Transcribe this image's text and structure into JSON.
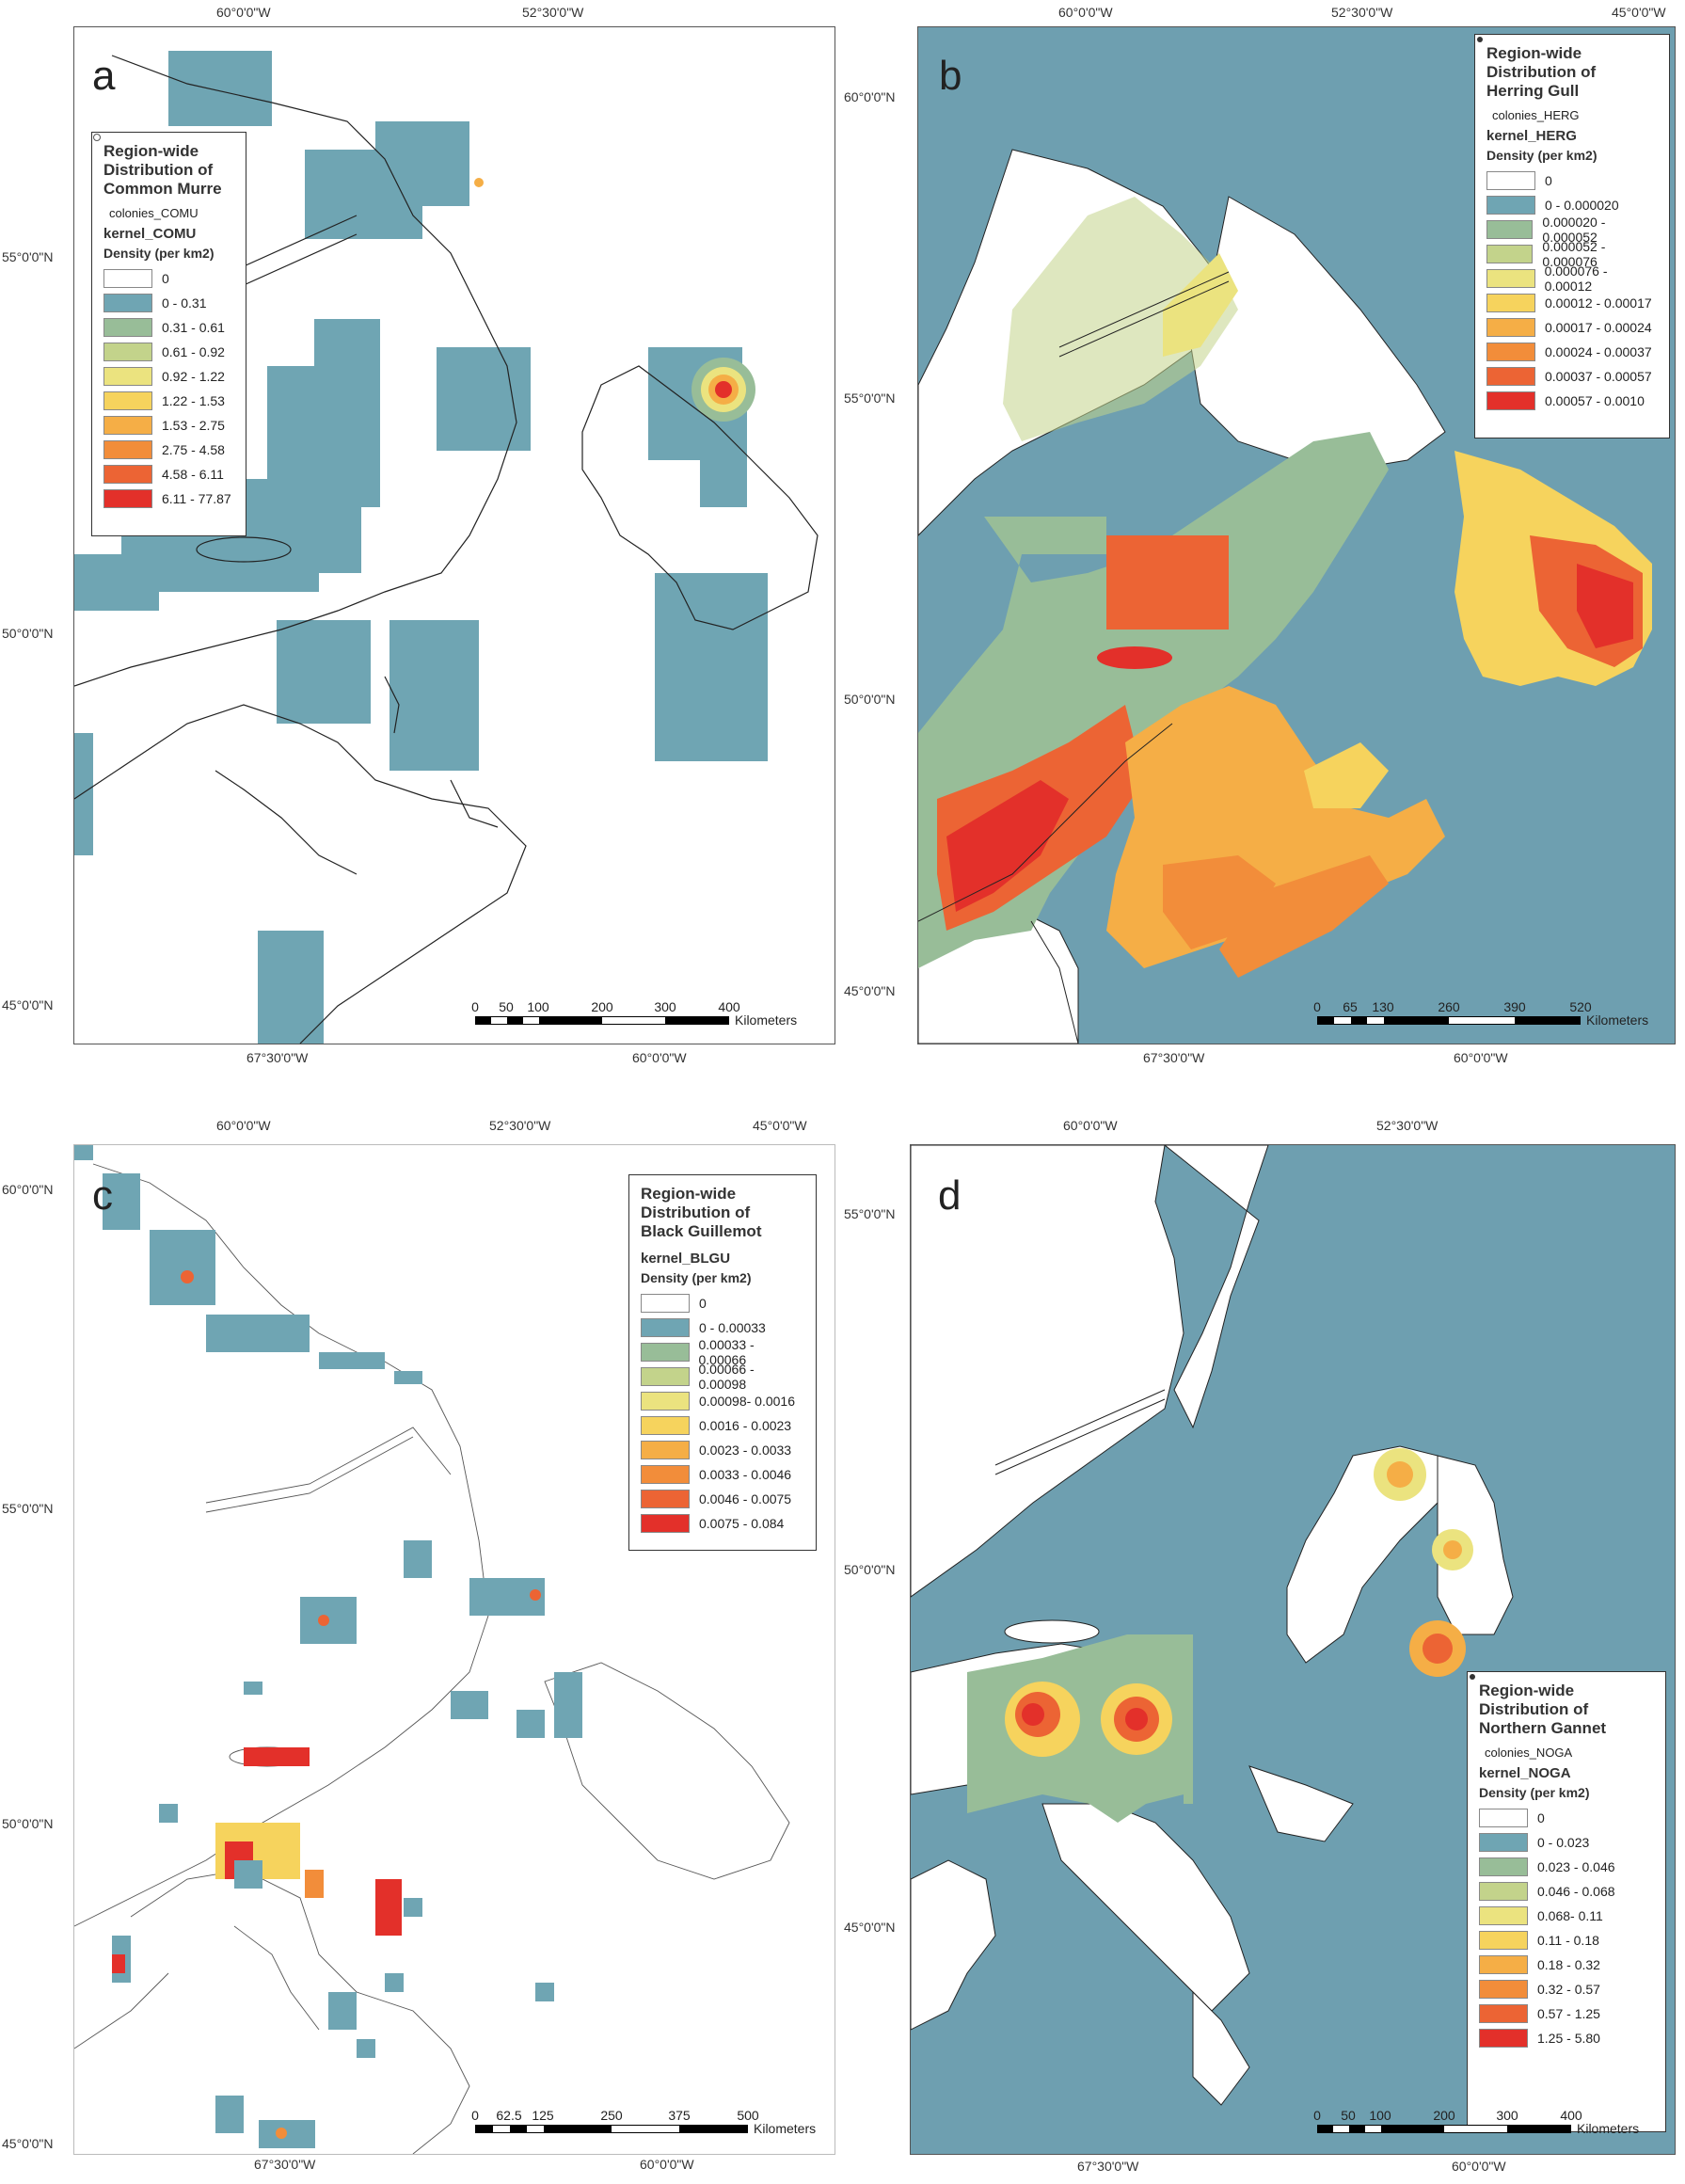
{
  "colors": {
    "sea": "#6e9fb0",
    "land": "#ffffff",
    "ramp": [
      "#ffffff",
      "#6fa5b3",
      "#98bd98",
      "#c3d38b",
      "#ebe37f",
      "#f6d35d",
      "#f5ae46",
      "#f28d3a",
      "#ec6434",
      "#e3302a"
    ]
  },
  "panels": [
    {
      "letter": "a",
      "top_ticks": [
        "60°0'0\"W",
        "52°30'0\"W"
      ],
      "bottom_ticks": [
        "67°30'0\"W",
        "60°0'0\"W"
      ],
      "left_ticks": [
        "55°0'0\"N",
        "50°0'0\"N",
        "45°0'0\"N"
      ],
      "legend": {
        "title": [
          "Region-wide",
          "Distribution of",
          "Common Murre"
        ],
        "colonies": "colonies_COMU",
        "colony_icon": "open-circle-icon",
        "kernel": "kernel_COMU",
        "density_label": "Density (per km2)",
        "classes": [
          "0",
          "0 - 0.31",
          "0.31 - 0.61",
          "0.61 - 0.92",
          "0.92 - 1.22",
          "1.22 - 1.53",
          "1.53 - 2.75",
          "2.75 - 4.58",
          "4.58 - 6.11",
          "6.11 - 77.87"
        ]
      },
      "scale": {
        "ticks": [
          "0",
          "50",
          "100",
          "200",
          "300",
          "400"
        ],
        "unit": "Kilometers"
      }
    },
    {
      "letter": "b",
      "top_ticks": [
        "60°0'0\"W",
        "52°30'0\"W",
        "45°0'0\"W"
      ],
      "bottom_ticks": [
        "67°30'0\"W",
        "60°0'0\"W"
      ],
      "left_ticks": [
        "60°0'0\"N",
        "55°0'0\"N",
        "50°0'0\"N",
        "45°0'0\"N"
      ],
      "legend": {
        "title": [
          "Region-wide",
          "Distribution of",
          "Herring Gull"
        ],
        "colonies": "colonies_HERG",
        "colony_icon": "star-point-icon",
        "kernel": "kernel_HERG",
        "density_label": "Density (per km2)",
        "classes": [
          "0",
          "0 - 0.000020",
          "0.000020 - 0.000052",
          "0.000052 - 0.000076",
          "0.000076 - 0.00012",
          "0.00012 - 0.00017",
          "0.00017 - 0.00024",
          "0.00024 - 0.00037",
          "0.00037 - 0.00057",
          "0.00057 - 0.0010"
        ]
      },
      "scale": {
        "ticks": [
          "0",
          "65",
          "130",
          "260",
          "390",
          "520"
        ],
        "unit": "Kilometers"
      }
    },
    {
      "letter": "c",
      "top_ticks": [
        "60°0'0\"W",
        "52°30'0\"W",
        "45°0'0\"W"
      ],
      "bottom_ticks": [
        "67°30'0\"W",
        "60°0'0\"W"
      ],
      "left_ticks": [
        "60°0'0\"N",
        "55°0'0\"N",
        "50°0'0\"N",
        "45°0'0\"N"
      ],
      "legend": {
        "title": [
          "Region-wide",
          "Distribution of",
          "Black Guillemot"
        ],
        "colonies": "",
        "colony_icon": "",
        "kernel": "kernel_BLGU",
        "density_label": "Density (per km2)",
        "classes": [
          "0",
          "0 - 0.00033",
          "0.00033 - 0.00066",
          "0.00066 - 0.00098",
          "0.00098- 0.0016",
          "0.0016 - 0.0023",
          "0.0023 - 0.0033",
          "0.0033 - 0.0046",
          "0.0046 - 0.0075",
          "0.0075 - 0.084"
        ]
      },
      "scale": {
        "ticks": [
          "0",
          "62.5",
          "125",
          "250",
          "375",
          "500"
        ],
        "unit": "Kilometers"
      }
    },
    {
      "letter": "d",
      "top_ticks": [
        "60°0'0\"W",
        "52°30'0\"W"
      ],
      "bottom_ticks": [
        "67°30'0\"W",
        "60°0'0\"W"
      ],
      "left_ticks": [
        "55°0'0\"N",
        "50°0'0\"N",
        "45°0'0\"N"
      ],
      "legend": {
        "title": [
          "Region-wide",
          "Distribution of",
          "Northern Gannet"
        ],
        "colonies": "colonies_NOGA",
        "colony_icon": "star-point-icon",
        "kernel": "kernel_NOGA",
        "density_label": "Density (per km2)",
        "classes": [
          "0",
          "0 - 0.023",
          "0.023 - 0.046",
          "0.046 - 0.068",
          "0.068- 0.11",
          "0.11 - 0.18",
          "0.18 - 0.32",
          "0.32 - 0.57",
          "0.57 - 1.25",
          "1.25 - 5.80"
        ]
      },
      "scale": {
        "ticks": [
          "0",
          "50",
          "100",
          "200",
          "300",
          "400"
        ],
        "unit": "Kilometers"
      }
    }
  ]
}
